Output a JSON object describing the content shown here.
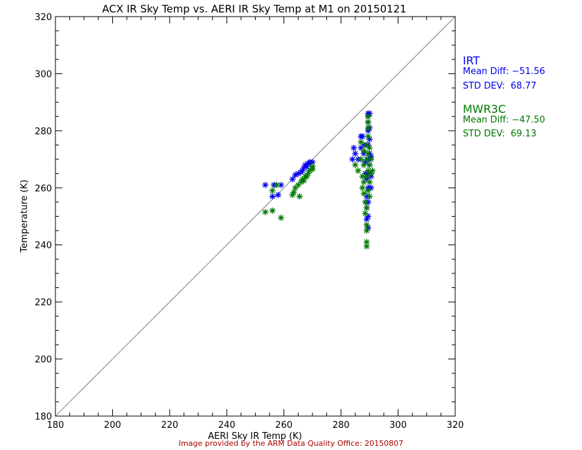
{
  "chart_data": {
    "type": "scatter",
    "title": "ACX IR Sky Temp vs. AERI IR Sky Temp at M1 on 20150121",
    "xlabel": "AERI Sky IR Temp (K)",
    "ylabel": "Temperature (K)",
    "xlim": [
      180,
      320
    ],
    "ylim": [
      180,
      320
    ],
    "xticks": [
      180,
      200,
      220,
      240,
      260,
      280,
      300,
      320
    ],
    "yticks": [
      180,
      200,
      220,
      240,
      260,
      280,
      300,
      320
    ],
    "reference_line": "y = x",
    "grid": false,
    "series": [
      {
        "name": "IRT",
        "color": "#0000ee",
        "points": [
          [
            253.5,
            261
          ],
          [
            256,
            257
          ],
          [
            256.5,
            261
          ],
          [
            258,
            257.5
          ],
          [
            259,
            261
          ],
          [
            263,
            263
          ],
          [
            264,
            264.5
          ],
          [
            265,
            265
          ],
          [
            266,
            265.5
          ],
          [
            266.5,
            266
          ],
          [
            267,
            267
          ],
          [
            267.5,
            268
          ],
          [
            268,
            267.5
          ],
          [
            268.5,
            268.5
          ],
          [
            269,
            269
          ],
          [
            270,
            269
          ],
          [
            284,
            270
          ],
          [
            284.5,
            274
          ],
          [
            285,
            272
          ],
          [
            286,
            270
          ],
          [
            287,
            274
          ],
          [
            287,
            278
          ],
          [
            287.5,
            278
          ],
          [
            288,
            275
          ],
          [
            288,
            272
          ],
          [
            288.5,
            269
          ],
          [
            288.5,
            265
          ],
          [
            289,
            263
          ],
          [
            289,
            257
          ],
          [
            289,
            253
          ],
          [
            289,
            249
          ],
          [
            289.5,
            246
          ],
          [
            289.5,
            250
          ],
          [
            289.5,
            255
          ],
          [
            289.5,
            260
          ],
          [
            289.5,
            265
          ],
          [
            289.5,
            270
          ],
          [
            289.5,
            275
          ],
          [
            289.5,
            280
          ],
          [
            289.5,
            283
          ],
          [
            289.5,
            285
          ],
          [
            289.5,
            286
          ],
          [
            290,
            286
          ],
          [
            290,
            281
          ],
          [
            290,
            277
          ],
          [
            290,
            272
          ],
          [
            290,
            268
          ],
          [
            290.5,
            264
          ],
          [
            290.5,
            271
          ],
          [
            290.5,
            260
          ]
        ]
      },
      {
        "name": "MWR3C",
        "color": "#007700",
        "points": [
          [
            253.5,
            251.5
          ],
          [
            256,
            252
          ],
          [
            256,
            259
          ],
          [
            257.5,
            261
          ],
          [
            259,
            249.5
          ],
          [
            263,
            257.5
          ],
          [
            263.5,
            258.5
          ],
          [
            264,
            260
          ],
          [
            265,
            261
          ],
          [
            265.5,
            257
          ],
          [
            266,
            262
          ],
          [
            266.5,
            263
          ],
          [
            267,
            262.5
          ],
          [
            267.5,
            264
          ],
          [
            268,
            264
          ],
          [
            268.5,
            265
          ],
          [
            269,
            266
          ],
          [
            270,
            266.5
          ],
          [
            270,
            267.5
          ],
          [
            285,
            268
          ],
          [
            286,
            266
          ],
          [
            287,
            270
          ],
          [
            287,
            276
          ],
          [
            287.5,
            264
          ],
          [
            287.5,
            260
          ],
          [
            288,
            273
          ],
          [
            288,
            268
          ],
          [
            288,
            262
          ],
          [
            288,
            258
          ],
          [
            288.5,
            255
          ],
          [
            288.5,
            251
          ],
          [
            289,
            247
          ],
          [
            289,
            245
          ],
          [
            289,
            241
          ],
          [
            289,
            239.5
          ],
          [
            289,
            253
          ],
          [
            289,
            264
          ],
          [
            289,
            270
          ],
          [
            289,
            275
          ],
          [
            289.5,
            278
          ],
          [
            289.5,
            281
          ],
          [
            289.5,
            283
          ],
          [
            289.5,
            285
          ],
          [
            289.5,
            272
          ],
          [
            289.5,
            266
          ],
          [
            289.5,
            259
          ],
          [
            290,
            262
          ],
          [
            290,
            268
          ],
          [
            290,
            274
          ],
          [
            290,
            257
          ],
          [
            290.5,
            265
          ],
          [
            290.5,
            270
          ],
          [
            291,
            266
          ]
        ]
      }
    ]
  },
  "stats": {
    "irt": {
      "name": "IRT",
      "mean_diff": "Mean Diff: −51.56",
      "std_dev": "STD DEV:  68.77"
    },
    "mwr3c": {
      "name": "MWR3C",
      "mean_diff": "Mean Diff: −47.50",
      "std_dev": "STD DEV:  69.13"
    }
  },
  "footer": "Image provided by the ARM Data Quality Office: 20150807"
}
